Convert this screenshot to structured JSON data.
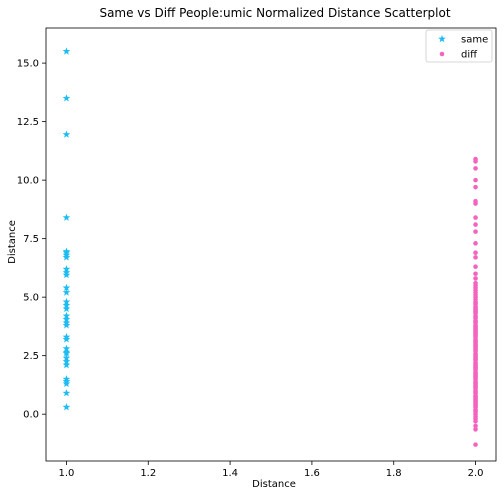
{
  "chart_data": {
    "type": "scatter",
    "title": "Same vs Diff People:umic Normalized Distance Scatterplot",
    "xlabel": "Distance",
    "ylabel": "Distance",
    "xlim": [
      0.95,
      2.05
    ],
    "ylim": [
      -2.0,
      16.5
    ],
    "xticks": [
      1.0,
      1.2,
      1.4,
      1.6,
      1.8,
      2.0
    ],
    "xtick_labels": [
      "1.0",
      "1.2",
      "1.4",
      "1.6",
      "1.8",
      "2.0"
    ],
    "yticks": [
      0.0,
      2.5,
      5.0,
      7.5,
      10.0,
      12.5,
      15.0
    ],
    "ytick_labels": [
      "0.0",
      "2.5",
      "5.0",
      "7.5",
      "10.0",
      "12.5",
      "15.0"
    ],
    "grid": false,
    "legend": "top-right",
    "series": [
      {
        "name": "same",
        "marker": "star",
        "color": "#1ebcf0",
        "x": [
          1,
          1,
          1,
          1,
          1,
          1,
          1,
          1,
          1,
          1,
          1,
          1,
          1,
          1,
          1,
          1,
          1,
          1,
          1,
          1,
          1,
          1,
          1,
          1,
          1,
          1,
          1,
          1,
          1,
          1,
          1,
          1,
          1
        ],
        "y": [
          15.5,
          13.5,
          11.95,
          8.4,
          6.95,
          6.9,
          6.8,
          6.7,
          6.2,
          6.05,
          5.95,
          5.4,
          5.2,
          4.8,
          4.65,
          4.5,
          4.2,
          4.05,
          3.9,
          3.8,
          3.3,
          3.2,
          2.8,
          2.65,
          2.6,
          2.4,
          2.25,
          2.1,
          1.5,
          1.4,
          1.3,
          0.9,
          0.3
        ]
      },
      {
        "name": "diff",
        "marker": "circle",
        "color": "#f464bf",
        "x": [
          2,
          2,
          2,
          2,
          2,
          2,
          2,
          2,
          2,
          2,
          2,
          2,
          2,
          2,
          2,
          2,
          2,
          2,
          2,
          2,
          2,
          2,
          2,
          2,
          2,
          2,
          2,
          2,
          2,
          2,
          2,
          2,
          2,
          2,
          2,
          2,
          2,
          2,
          2,
          2,
          2,
          2,
          2,
          2,
          2,
          2,
          2,
          2,
          2,
          2,
          2,
          2,
          2,
          2,
          2,
          2,
          2,
          2,
          2,
          2,
          2,
          2,
          2,
          2,
          2,
          2,
          2,
          2,
          2,
          2,
          2,
          2,
          2,
          2,
          2,
          2,
          2,
          2,
          2,
          2,
          2,
          2,
          2,
          2,
          2,
          2,
          2,
          2,
          2,
          2,
          2,
          2,
          2,
          2,
          2,
          2,
          2,
          2,
          2,
          2,
          2,
          2,
          2,
          2,
          2,
          2,
          2,
          2,
          2,
          2,
          2,
          2,
          2,
          2
        ],
        "y": [
          10.9,
          10.8,
          10.5,
          10.0,
          9.7,
          9.1,
          9.0,
          8.4,
          8.1,
          7.8,
          7.3,
          6.9,
          6.7,
          6.3,
          6.0,
          5.8,
          5.6,
          5.5,
          5.4,
          5.3,
          5.2,
          5.1,
          5.0,
          4.9,
          4.8,
          4.75,
          4.7,
          4.6,
          4.5,
          4.45,
          4.4,
          4.3,
          4.2,
          4.15,
          4.1,
          4.0,
          3.95,
          3.9,
          3.8,
          3.75,
          3.7,
          3.6,
          3.55,
          3.5,
          3.4,
          3.35,
          3.3,
          3.2,
          3.15,
          3.1,
          3.0,
          2.95,
          2.9,
          2.8,
          2.75,
          2.7,
          2.6,
          2.55,
          2.5,
          2.4,
          2.35,
          2.3,
          2.2,
          2.15,
          2.1,
          2.0,
          1.95,
          1.9,
          1.8,
          1.75,
          1.7,
          1.6,
          1.55,
          1.5,
          1.4,
          1.35,
          1.3,
          1.2,
          1.15,
          1.1,
          1.0,
          0.95,
          0.9,
          0.8,
          0.75,
          0.7,
          0.6,
          0.55,
          0.5,
          0.4,
          0.35,
          0.3,
          0.2,
          0.15,
          0.1,
          0.0,
          -0.1,
          -0.2,
          -0.3,
          -0.5,
          -0.65,
          -1.3,
          2.45,
          3.65,
          4.35,
          1.25,
          0.65,
          2.85,
          3.45,
          1.65,
          4.55,
          0.45,
          3.05,
          2.05
        ]
      }
    ]
  }
}
